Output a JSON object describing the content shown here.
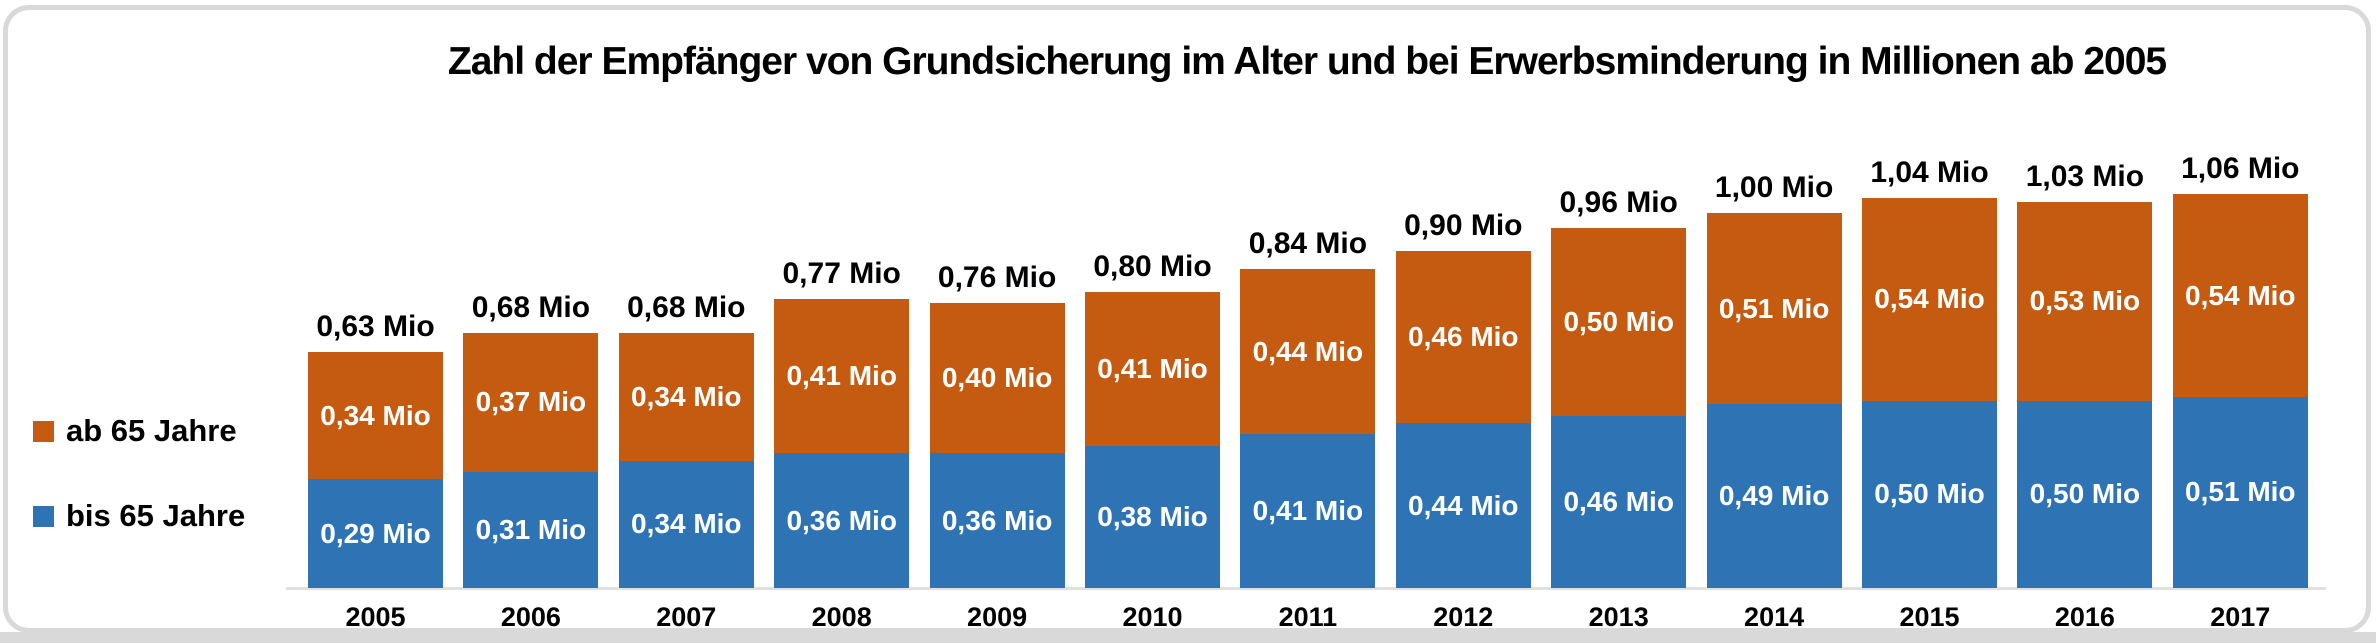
{
  "title": "Zahl der Empfänger von Grundsicherung im Alter und bei Erwerbsminderung in Millionen ab 2005",
  "colors": {
    "orange": "#C55A11",
    "blue": "#2E74B5",
    "border_gray": "#D9D9D9",
    "axis_gray": "#E0E0E0"
  },
  "legend": {
    "items": [
      {
        "label": "ab 65 Jahre",
        "color": "#C55A11"
      },
      {
        "label": "bis 65 Jahre",
        "color": "#2E74B5"
      }
    ]
  },
  "chart_data": {
    "type": "bar",
    "stacked": true,
    "title": "Zahl der Empfänger von Grundsicherung im Alter und bei Erwerbsminderung in Millionen ab 2005",
    "categories": [
      "2005",
      "2006",
      "2007",
      "2008",
      "2009",
      "2010",
      "2011",
      "2012",
      "2013",
      "2014",
      "2015",
      "2016",
      "2017"
    ],
    "series": [
      {
        "name": "bis 65 Jahre",
        "color": "#2E74B5",
        "values": [
          0.29,
          0.31,
          0.34,
          0.36,
          0.36,
          0.38,
          0.41,
          0.44,
          0.46,
          0.49,
          0.5,
          0.5,
          0.51
        ],
        "labels": [
          "0,29 Mio",
          "0,31 Mio",
          "0,34 Mio",
          "0,36 Mio",
          "0,36 Mio",
          "0,38 Mio",
          "0,41 Mio",
          "0,44 Mio",
          "0,46 Mio",
          "0,49 Mio",
          "0,50 Mio",
          "0,50 Mio",
          "0,51 Mio"
        ]
      },
      {
        "name": "ab 65 Jahre",
        "color": "#C55A11",
        "values": [
          0.34,
          0.37,
          0.34,
          0.41,
          0.4,
          0.41,
          0.44,
          0.46,
          0.5,
          0.51,
          0.54,
          0.53,
          0.54
        ],
        "labels": [
          "0,34 Mio",
          "0,37 Mio",
          "0,34 Mio",
          "0,41 Mio",
          "0,40 Mio",
          "0,41 Mio",
          "0,44 Mio",
          "0,46 Mio",
          "0,50 Mio",
          "0,51 Mio",
          "0,54 Mio",
          "0,53 Mio",
          "0,54 Mio"
        ]
      }
    ],
    "totals": [
      0.63,
      0.68,
      0.68,
      0.77,
      0.76,
      0.8,
      0.84,
      0.9,
      0.96,
      1.0,
      1.04,
      1.03,
      1.06
    ],
    "total_labels": [
      "0,63 Mio",
      "0,68 Mio",
      "0,68 Mio",
      "0,77 Mio",
      "0,76 Mio",
      "0,80 Mio",
      "0,84 Mio",
      "0,90 Mio",
      "0,96 Mio",
      "1,00 Mio",
      "1,04 Mio",
      "1,03 Mio",
      "1,06 Mio"
    ],
    "xlabel": "",
    "ylabel": "",
    "ylim": [
      0,
      1.2
    ],
    "grid": false,
    "legend_position": "left",
    "value_suffix": " Mio",
    "decimal_separator": ","
  }
}
